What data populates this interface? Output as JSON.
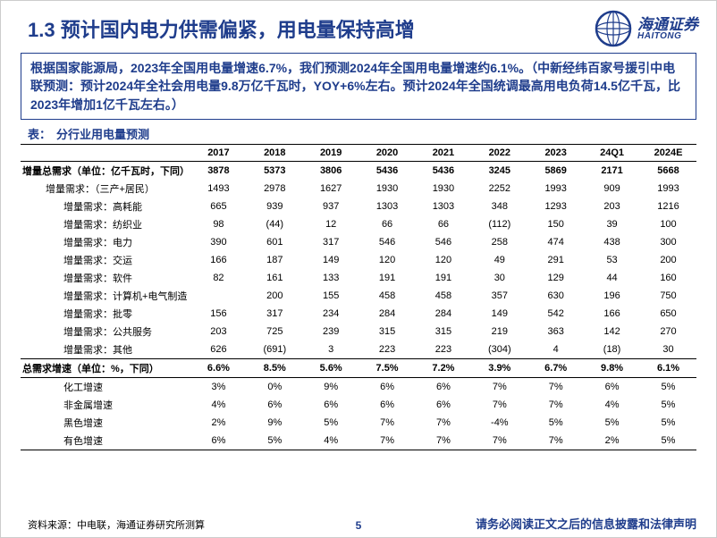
{
  "header": {
    "title": "1.3 预计国内电力供需偏紧，用电量保持高增",
    "logo_cn": "海通证券",
    "logo_en": "HAITONG",
    "logo_color": "#1f3d8c"
  },
  "summary": {
    "text": "根据国家能源局，2023年全国用电量增速6.7%，我们预测2024年全国用电量增速约6.1%。（中新经纬百家号援引中电联预测：预计2024年全社会用电量9.8万亿千瓦时，YOY+6%左右。预计2024年全国统调最高用电负荷14.5亿千瓦，比2023年增加1亿千瓦左右。）",
    "border_color": "#1f3d8c",
    "text_color": "#1f3d8c",
    "fontsize": 14
  },
  "table": {
    "caption_prefix": "表：",
    "caption": "分行业用电量预测",
    "label_header": "",
    "columns": [
      "2017",
      "2018",
      "2019",
      "2020",
      "2021",
      "2022",
      "2023",
      "24Q1",
      "2024E"
    ],
    "rows": [
      {
        "label": "增量总需求（单位：亿千瓦时，下同）",
        "indent": 0,
        "bold": true,
        "sect": false,
        "cells": [
          "3878",
          "5373",
          "3806",
          "5436",
          "5436",
          "3245",
          "5869",
          "2171",
          "5668"
        ]
      },
      {
        "label": "增量需求：（三产+居民）",
        "indent": 1,
        "bold": false,
        "sect": false,
        "cells": [
          "1493",
          "2978",
          "1627",
          "1930",
          "1930",
          "2252",
          "1993",
          "909",
          "1993"
        ]
      },
      {
        "label": "增量需求：高耗能",
        "indent": 2,
        "bold": false,
        "sect": false,
        "cells": [
          "665",
          "939",
          "937",
          "1303",
          "1303",
          "348",
          "1293",
          "203",
          "1216"
        ]
      },
      {
        "label": "增量需求：纺织业",
        "indent": 2,
        "bold": false,
        "sect": false,
        "cells": [
          "98",
          "(44)",
          "12",
          "66",
          "66",
          "(112)",
          "150",
          "39",
          "100"
        ]
      },
      {
        "label": "增量需求：电力",
        "indent": 2,
        "bold": false,
        "sect": false,
        "cells": [
          "390",
          "601",
          "317",
          "546",
          "546",
          "258",
          "474",
          "438",
          "300"
        ]
      },
      {
        "label": "增量需求：交运",
        "indent": 2,
        "bold": false,
        "sect": false,
        "cells": [
          "166",
          "187",
          "149",
          "120",
          "120",
          "49",
          "291",
          "53",
          "200"
        ]
      },
      {
        "label": "增量需求：软件",
        "indent": 2,
        "bold": false,
        "sect": false,
        "cells": [
          "82",
          "161",
          "133",
          "191",
          "191",
          "30",
          "129",
          "44",
          "160"
        ]
      },
      {
        "label": "增量需求：计算机+电气制造",
        "indent": 2,
        "bold": false,
        "sect": false,
        "cells": [
          "",
          "200",
          "155",
          "458",
          "458",
          "357",
          "630",
          "196",
          "750"
        ]
      },
      {
        "label": "增量需求：批零",
        "indent": 2,
        "bold": false,
        "sect": false,
        "cells": [
          "156",
          "317",
          "234",
          "284",
          "284",
          "149",
          "542",
          "166",
          "650"
        ]
      },
      {
        "label": "增量需求：公共服务",
        "indent": 2,
        "bold": false,
        "sect": false,
        "cells": [
          "203",
          "725",
          "239",
          "315",
          "315",
          "219",
          "363",
          "142",
          "270"
        ]
      },
      {
        "label": "增量需求：其他",
        "indent": 2,
        "bold": false,
        "sect": false,
        "cells": [
          "626",
          "(691)",
          "3",
          "223",
          "223",
          "(304)",
          "4",
          "(18)",
          "30"
        ]
      },
      {
        "label": "总需求增速（单位：%，下同）",
        "indent": 0,
        "bold": true,
        "sect": true,
        "cells": [
          "6.6%",
          "8.5%",
          "5.6%",
          "7.5%",
          "7.2%",
          "3.9%",
          "6.7%",
          "9.8%",
          "6.1%"
        ]
      },
      {
        "label": "化工增速",
        "indent": 2,
        "bold": false,
        "sect": false,
        "cells": [
          "3%",
          "0%",
          "9%",
          "6%",
          "6%",
          "7%",
          "7%",
          "6%",
          "5%"
        ]
      },
      {
        "label": "非金属增速",
        "indent": 2,
        "bold": false,
        "sect": false,
        "cells": [
          "4%",
          "6%",
          "6%",
          "6%",
          "6%",
          "7%",
          "7%",
          "4%",
          "5%"
        ]
      },
      {
        "label": "黑色增速",
        "indent": 2,
        "bold": false,
        "sect": false,
        "cells": [
          "2%",
          "9%",
          "5%",
          "7%",
          "7%",
          "-4%",
          "5%",
          "5%",
          "5%"
        ]
      },
      {
        "label": "有色增速",
        "indent": 2,
        "bold": false,
        "sect": false,
        "cells": [
          "6%",
          "5%",
          "4%",
          "7%",
          "7%",
          "7%",
          "7%",
          "2%",
          "5%"
        ]
      }
    ],
    "border_color": "#000000",
    "header_fontsize": 11,
    "cell_fontsize": 11
  },
  "footer": {
    "source": "资料来源：中电联，海通证券研究所测算",
    "page": "5",
    "disclaimer": "请务必阅读正文之后的信息披露和法律声明"
  }
}
